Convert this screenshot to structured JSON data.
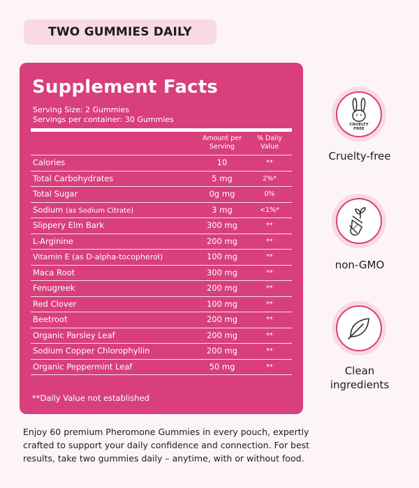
{
  "banner": {
    "label": "TWO GUMMIES DAILY"
  },
  "facts": {
    "title": "Supplement Facts",
    "serving_size": "Serving Size: 2 Gummies",
    "servings_per_container": "Servings per container: 30 Gummies",
    "col_amount": "Amount per Serving",
    "col_dv": "% Daily Value",
    "rows": [
      {
        "name": "Calories",
        "sub": "",
        "amount": "10",
        "dv": "**"
      },
      {
        "name": "Total Carbohydrates",
        "sub": "",
        "amount": "5 mg",
        "dv": "2%*"
      },
      {
        "name": "Total Sugar",
        "sub": "",
        "amount": "0g mg",
        "dv": "0%"
      },
      {
        "name": "Sodium",
        "sub": "(as Sodium Citrate)",
        "amount": "3 mg",
        "dv": "<1%*"
      },
      {
        "name": "Slippery Elm Bark",
        "sub": "",
        "amount": "300 mg",
        "dv": "**"
      },
      {
        "name": "L-Arginine",
        "sub": "",
        "amount": "200 mg",
        "dv": "**"
      },
      {
        "name": "Vitamin E (as D-alpha-tocopherol)",
        "sub": "",
        "amount": "100 mg",
        "dv": "**"
      },
      {
        "name": "Maca Root",
        "sub": "",
        "amount": "300 mg",
        "dv": "**"
      },
      {
        "name": "Fenugreek",
        "sub": "",
        "amount": "200 mg",
        "dv": "**"
      },
      {
        "name": "Red Clover",
        "sub": "",
        "amount": "100 mg",
        "dv": "**"
      },
      {
        "name": "Beetroot",
        "sub": "",
        "amount": "200 mg",
        "dv": "**"
      },
      {
        "name": "Organic Parsley Leaf",
        "sub": "",
        "amount": "200 mg",
        "dv": "**"
      },
      {
        "name": "Sodium Copper Chlorophyllin",
        "sub": "",
        "amount": "200 mg",
        "dv": "**"
      },
      {
        "name": "Organic Peppermint Leaf",
        "sub": "",
        "amount": "50 mg",
        "dv": "**"
      }
    ],
    "footnote": "**Daily Value not established"
  },
  "badges": {
    "cruelty_free": {
      "icon": "rabbit-icon",
      "badge_text": "CRUELTY FREE",
      "label": "Cruelty-free"
    },
    "non_gmo": {
      "icon": "plant-test-tube-icon",
      "label": "non-GMO"
    },
    "clean": {
      "icon": "leaf-icon",
      "label_line1": "Clean",
      "label_line2": "ingredients"
    }
  },
  "blurb": {
    "text": "Enjoy 60 premium Pheromone Gummies in every pouch, expertly crafted to support your daily confidence and connection. For best results, take two gummies daily – anytime, with or without food."
  },
  "colors": {
    "accent": "#d83f7c",
    "badge_bg": "#f8d9e4",
    "page_bg": "#fdf4f7"
  }
}
